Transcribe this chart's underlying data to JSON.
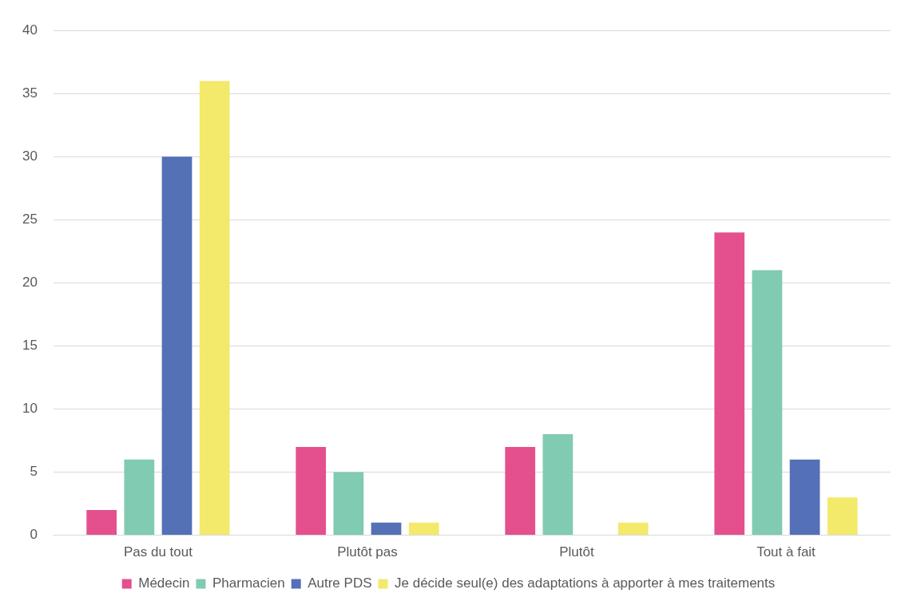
{
  "chart_data": {
    "type": "bar",
    "categories": [
      "Pas du tout",
      "Plutôt pas",
      "Plutôt",
      "Tout à fait"
    ],
    "series": [
      {
        "name": "Médecin",
        "color": "#e4508e",
        "values": [
          2,
          7,
          7,
          24
        ]
      },
      {
        "name": "Pharmacien",
        "color": "#80cbb1",
        "values": [
          6,
          5,
          8,
          21
        ]
      },
      {
        "name": "Autre PDS",
        "color": "#5470b6",
        "values": [
          30,
          1,
          0,
          6
        ]
      },
      {
        "name": "Je décide seul(e) des adaptations à apporter à mes traitements",
        "color": "#f3e96b",
        "values": [
          36,
          1,
          1,
          3
        ]
      }
    ],
    "ylim": [
      0,
      40
    ],
    "yticks": [
      0,
      5,
      10,
      15,
      20,
      25,
      30,
      35,
      40
    ],
    "grid": "y",
    "legend": "bottom"
  }
}
